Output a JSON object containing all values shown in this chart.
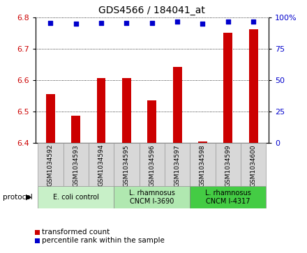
{
  "title": "GDS4566 / 184041_at",
  "samples": [
    "GSM1034592",
    "GSM1034593",
    "GSM1034594",
    "GSM1034595",
    "GSM1034596",
    "GSM1034597",
    "GSM1034598",
    "GSM1034599",
    "GSM1034600"
  ],
  "bar_values": [
    6.555,
    6.487,
    6.608,
    6.608,
    6.535,
    6.643,
    6.405,
    6.752,
    6.762
  ],
  "percentile_values": [
    96,
    95,
    96,
    96,
    96,
    97,
    95,
    97,
    97
  ],
  "ylim_left": [
    6.4,
    6.8
  ],
  "ylim_right": [
    0,
    100
  ],
  "yticks_left": [
    6.4,
    6.5,
    6.6,
    6.7,
    6.8
  ],
  "yticks_right": [
    0,
    25,
    50,
    75,
    100
  ],
  "bar_color": "#cc0000",
  "dot_color": "#0000cc",
  "protocol_groups": [
    {
      "label": "E. coli control",
      "start": 0,
      "end": 2,
      "color": "#c8f0c8"
    },
    {
      "label": "L. rhamnosus\nCNCM I-3690",
      "start": 3,
      "end": 5,
      "color": "#b0e8b0"
    },
    {
      "label": "L. rhamnosus\nCNCM I-4317",
      "start": 6,
      "end": 8,
      "color": "#44cc44"
    }
  ],
  "sample_bg_color": "#d8d8d8",
  "sample_border_color": "#999999",
  "legend_items": [
    {
      "color": "#cc0000",
      "label": "transformed count"
    },
    {
      "color": "#0000cc",
      "label": "percentile rank within the sample"
    }
  ]
}
